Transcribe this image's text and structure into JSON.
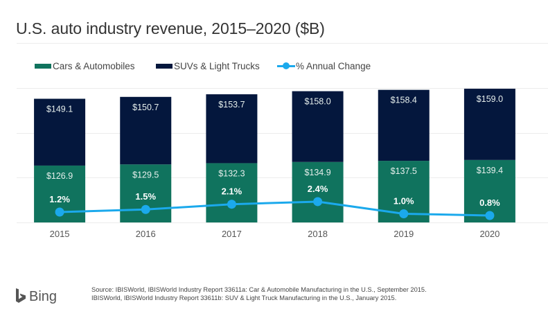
{
  "page": {
    "title": "U.S. auto industry revenue, 2015–2020 ($B)"
  },
  "colors": {
    "cars": "#10735e",
    "suvs": "#04173d",
    "line": "#1ba9ec",
    "grid": "#ececec",
    "bar_label": "#e6efec",
    "pct_label": "#ffffff"
  },
  "legend": [
    {
      "label": "Cars & Automobiles",
      "kind": "bar",
      "series": "cars"
    },
    {
      "label": "SUVs & Light Trucks",
      "kind": "bar",
      "series": "suvs"
    },
    {
      "label": "% Annual Change",
      "kind": "line",
      "series": "line"
    }
  ],
  "chart_data": {
    "type": "bar",
    "subtype": "stacked bar with line overlay (secondary axis)",
    "title": "U.S. auto industry revenue, 2015–2020 ($B)",
    "xlabel": "",
    "ylabel": "",
    "categories": [
      "2015",
      "2016",
      "2017",
      "2018",
      "2019",
      "2020"
    ],
    "series": [
      {
        "name": "Cars & Automobiles",
        "type": "bar",
        "stack": "revenue",
        "values": [
          126.9,
          129.5,
          132.3,
          134.9,
          137.5,
          139.4
        ],
        "labels": [
          "$126.9",
          "$129.5",
          "$132.3",
          "$134.9",
          "$137.5",
          "$139.4"
        ]
      },
      {
        "name": "SUVs & Light Trucks",
        "type": "bar",
        "stack": "revenue",
        "values": [
          149.1,
          150.7,
          153.7,
          158.0,
          158.4,
          159.0
        ],
        "labels": [
          "$149.1",
          "$150.7",
          "$153.7",
          "$158.0",
          "$158.4",
          "$159.0"
        ]
      },
      {
        "name": "% Annual Change",
        "type": "line",
        "axis": "secondary",
        "values": [
          1.2,
          1.5,
          2.1,
          2.4,
          1.0,
          0.8
        ],
        "labels": [
          "1.2%",
          "1.5%",
          "2.1%",
          "2.4%",
          "1.0%",
          "0.8%"
        ]
      }
    ],
    "ylim": [
      0,
      300
    ],
    "y2lim": [
      0,
      15.5
    ],
    "gridlines": [
      0,
      100,
      200,
      300
    ],
    "grid": true,
    "y_tick_labels_visible": false,
    "legend_position": "top-left"
  },
  "footer": {
    "logo_text": "Bing",
    "source_lines": [
      "Source: IBISWorld, IBISWorld Industry Report 33611a: Car & Automobile Manufacturing in the U.S., September 2015.",
      "IBISWorld, IBISWorld Industry Report 33611b: SUV & Light Truck Manufacturing in the U.S., January 2015."
    ]
  }
}
